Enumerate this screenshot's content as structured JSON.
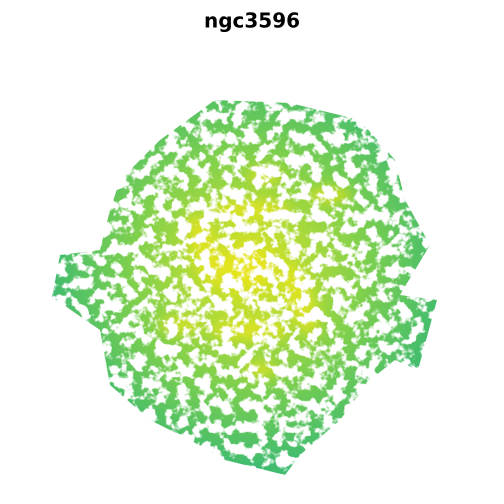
{
  "title": "ngc3596"
}
